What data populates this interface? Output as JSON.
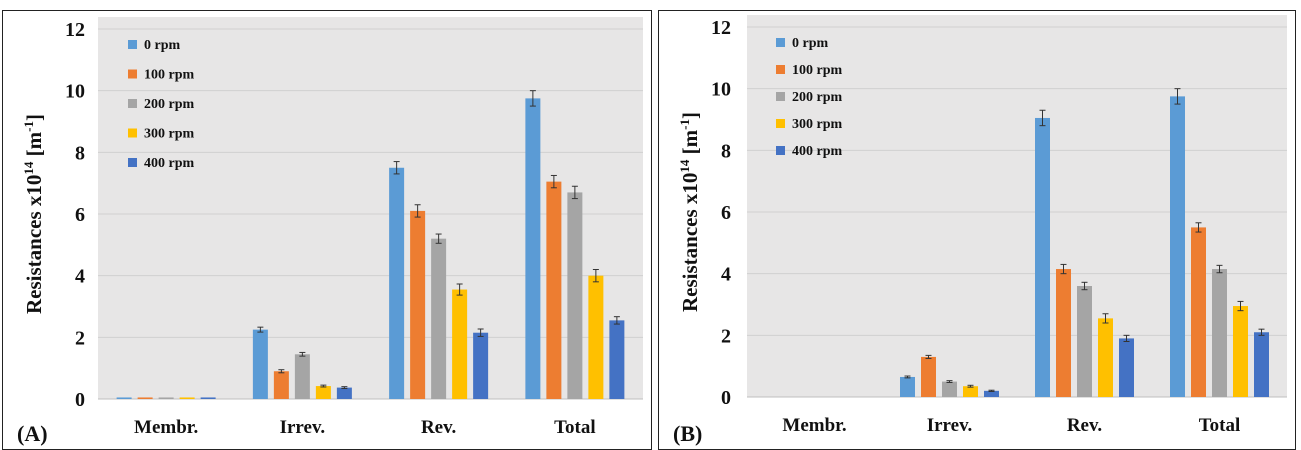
{
  "chart_data": [
    {
      "type": "bar",
      "panel_label": "(A)",
      "ylabel_main": "Resistances x10",
      "ylabel_sup1": "14",
      "ylabel_unit": " [m",
      "ylabel_sup2": "-1",
      "ylabel_end": "]",
      "ylim": [
        0,
        12
      ],
      "yticks": [
        "0",
        "2",
        "4",
        "6",
        "8",
        "10",
        "12"
      ],
      "grid": true,
      "legend_position": "top-left",
      "categories": [
        "Membr.",
        "Irrev.",
        "Rev.",
        "Total"
      ],
      "series": [
        {
          "name": "0 rpm",
          "color": "#5b9bd5",
          "values": [
            0.05,
            2.25,
            7.5,
            9.75
          ],
          "errors": [
            0.0,
            0.08,
            0.2,
            0.25
          ]
        },
        {
          "name": "100 rpm",
          "color": "#ed7d31",
          "values": [
            0.05,
            0.9,
            6.1,
            7.05
          ],
          "errors": [
            0.0,
            0.05,
            0.2,
            0.2
          ]
        },
        {
          "name": "200 rpm",
          "color": "#a5a5a5",
          "values": [
            0.05,
            1.45,
            5.2,
            6.7
          ],
          "errors": [
            0.0,
            0.06,
            0.15,
            0.2
          ]
        },
        {
          "name": "300 rpm",
          "color": "#ffc000",
          "values": [
            0.05,
            0.42,
            3.55,
            4.0
          ],
          "errors": [
            0.0,
            0.03,
            0.18,
            0.2
          ]
        },
        {
          "name": "400 rpm",
          "color": "#4472c4",
          "values": [
            0.05,
            0.37,
            2.15,
            2.55
          ],
          "errors": [
            0.0,
            0.03,
            0.12,
            0.12
          ]
        }
      ]
    },
    {
      "type": "bar",
      "panel_label": "(B)",
      "ylabel_main": "Resistances x10",
      "ylabel_sup1": "14",
      "ylabel_unit": " [m",
      "ylabel_sup2": "-1",
      "ylabel_end": "]",
      "ylim": [
        0,
        12
      ],
      "yticks": [
        "0",
        "2",
        "4",
        "6",
        "8",
        "10",
        "12"
      ],
      "grid": true,
      "legend_position": "top-left",
      "categories": [
        "Membr.",
        "Irrev.",
        "Rev.",
        "Total"
      ],
      "series": [
        {
          "name": "0 rpm",
          "color": "#5b9bd5",
          "values": [
            0,
            0.65,
            9.05,
            9.75
          ],
          "errors": [
            0,
            0.03,
            0.25,
            0.25
          ]
        },
        {
          "name": "100 rpm",
          "color": "#ed7d31",
          "values": [
            0,
            1.3,
            4.15,
            5.5
          ],
          "errors": [
            0,
            0.05,
            0.15,
            0.15
          ]
        },
        {
          "name": "200 rpm",
          "color": "#a5a5a5",
          "values": [
            0,
            0.5,
            3.6,
            4.15
          ],
          "errors": [
            0,
            0.03,
            0.12,
            0.12
          ]
        },
        {
          "name": "300 rpm",
          "color": "#ffc000",
          "values": [
            0,
            0.35,
            2.55,
            2.95
          ],
          "errors": [
            0,
            0.03,
            0.15,
            0.15
          ]
        },
        {
          "name": "400 rpm",
          "color": "#4472c4",
          "values": [
            0,
            0.2,
            1.9,
            2.1
          ],
          "errors": [
            0,
            0.02,
            0.1,
            0.1
          ]
        }
      ]
    }
  ]
}
